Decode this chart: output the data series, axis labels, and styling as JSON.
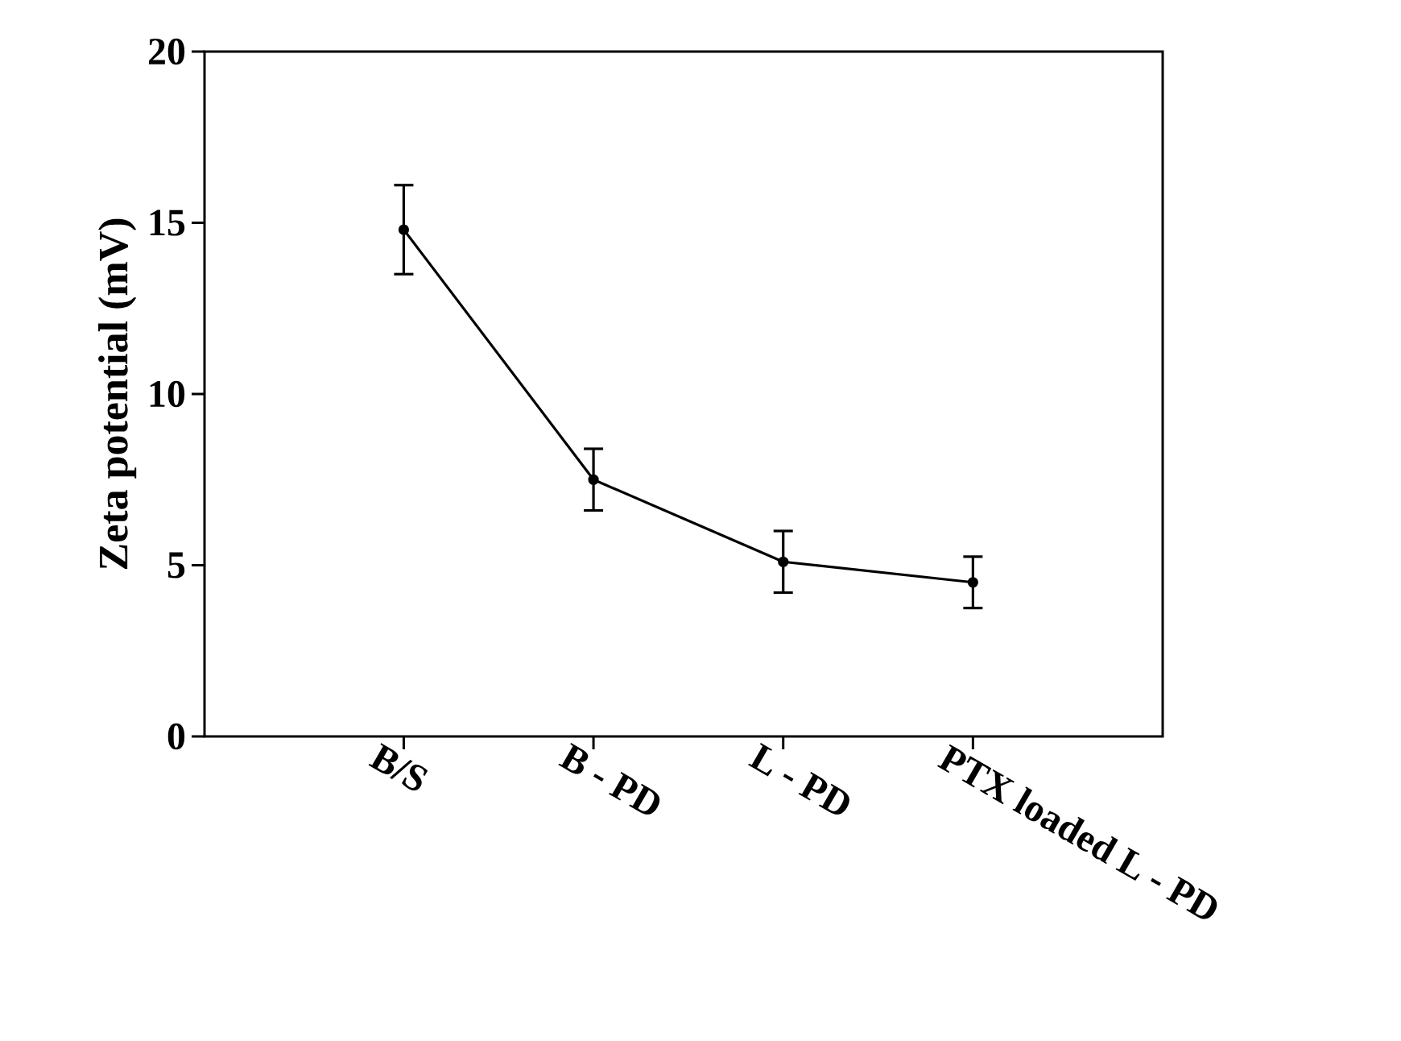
{
  "chart_data": {
    "type": "line",
    "ylabel": "Zeta potential (mV)",
    "categories": [
      "B/S",
      "B - PD",
      "L - PD",
      "PTX loaded L - PD"
    ],
    "values": [
      14.8,
      7.5,
      5.1,
      4.5
    ],
    "errors": [
      1.3,
      0.9,
      0.9,
      0.75
    ],
    "color": "#000000",
    "marker": "circle",
    "ylim": [
      0,
      20
    ],
    "yticks": [
      0,
      5,
      10,
      15,
      20
    ]
  }
}
